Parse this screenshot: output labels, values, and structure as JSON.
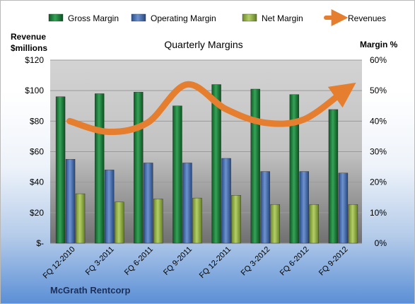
{
  "chart_data": {
    "type": "bar",
    "title": "Quarterly Margins",
    "left_axis_label": [
      "Revenue",
      "$millions"
    ],
    "right_axis_label": "Margin %",
    "categories": [
      "FQ 12-2010",
      "FQ 3-2011",
      "FQ 6-2011",
      "FQ 9-2011",
      "FQ 12-2011",
      "FQ 3-2012",
      "FQ 6-2012",
      "FQ 9-2012"
    ],
    "left_ylim": [
      0,
      120
    ],
    "left_ticks": [
      "$-",
      "$20",
      "$40",
      "$60",
      "$80",
      "$100",
      "$120"
    ],
    "right_ylim": [
      0,
      0.6
    ],
    "right_ticks": [
      "0%",
      "10%",
      "20%",
      "30%",
      "40%",
      "50%",
      "60%"
    ],
    "grid": true,
    "legend_position": "top",
    "series": [
      {
        "name": "Gross Margin",
        "axis": "right",
        "type": "bar",
        "color": "#1e7a3a",
        "values": [
          0.48,
          0.49,
          0.495,
          0.45,
          0.52,
          0.505,
          0.487,
          0.438
        ]
      },
      {
        "name": "Operating Margin",
        "axis": "right",
        "type": "bar",
        "color": "#3f67a8",
        "values": [
          0.275,
          0.24,
          0.263,
          0.263,
          0.278,
          0.235,
          0.235,
          0.23
        ]
      },
      {
        "name": "Net Margin",
        "axis": "right",
        "type": "bar",
        "color": "#8fae3f",
        "values": [
          0.162,
          0.135,
          0.145,
          0.148,
          0.157,
          0.127,
          0.127,
          0.127
        ]
      },
      {
        "name": "Revenues",
        "axis": "left",
        "type": "line",
        "color": "#e57e2e",
        "values": [
          80,
          73,
          79,
          104,
          88,
          79,
          81,
          99
        ]
      }
    ]
  },
  "footer": {
    "company": "McGrath Rentcorp"
  }
}
